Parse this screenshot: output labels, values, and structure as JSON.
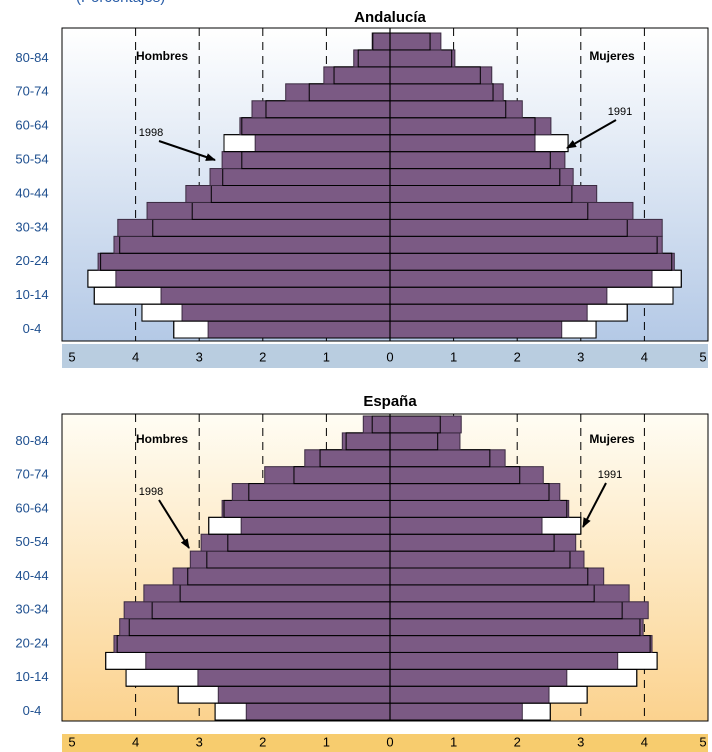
{
  "chart_data": [
    {
      "type": "pyramid",
      "title": "Andalucía",
      "subtitle": "(Porcentajes)",
      "left_label": "Hombres",
      "right_label": "Mujeres",
      "categories": [
        "0-4",
        null,
        "10-14",
        null,
        "20-24",
        null,
        "30-34",
        null,
        "40-44",
        null,
        "50-54",
        null,
        "60-64",
        null,
        "70-74",
        null,
        "80-84",
        null
      ],
      "series": [
        {
          "name": "1991",
          "color": "#ffffff",
          "left": [
            3.4,
            3.9,
            4.65,
            4.75,
            4.55,
            4.25,
            3.73,
            3.11,
            2.81,
            2.63,
            2.33,
            2.61,
            2.33,
            1.95,
            1.27,
            0.88,
            0.5,
            0.27
          ],
          "right": [
            3.24,
            3.73,
            4.45,
            4.58,
            4.43,
            4.2,
            3.73,
            3.11,
            2.86,
            2.67,
            2.52,
            2.8,
            2.28,
            1.82,
            1.62,
            1.42,
            0.97,
            0.63
          ]
        },
        {
          "name": "1998",
          "color": "#7b5a84",
          "left": [
            2.86,
            3.27,
            3.6,
            4.31,
            4.59,
            4.34,
            4.28,
            3.82,
            3.21,
            2.83,
            2.64,
            2.12,
            2.36,
            2.17,
            1.64,
            1.04,
            0.57,
            0.28
          ],
          "right": [
            2.7,
            3.1,
            3.41,
            4.12,
            4.47,
            4.28,
            4.28,
            3.82,
            3.25,
            2.88,
            2.75,
            2.28,
            2.53,
            2.08,
            1.78,
            1.6,
            1.02,
            0.8
          ]
        }
      ],
      "xlim": [
        -5,
        5
      ],
      "xticks": [
        {
          "value": -5,
          "label": "5"
        },
        {
          "value": -4,
          "label": "4"
        },
        {
          "value": -3,
          "label": "3"
        },
        {
          "value": -2,
          "label": "2"
        },
        {
          "value": -1,
          "label": "1"
        },
        0,
        1,
        2,
        3,
        4,
        5
      ],
      "grid": true,
      "background": [
        "#ffffff",
        "#b4c9e6"
      ],
      "axis_color": "#b9cde0"
    },
    {
      "type": "pyramid",
      "title": "España",
      "left_label": "Hombres",
      "right_label": "Mujeres",
      "categories": [
        "0-4",
        null,
        "10-14",
        null,
        "20-24",
        null,
        "30-34",
        null,
        "40-44",
        null,
        "50-54",
        null,
        "60-64",
        null,
        "70-74",
        null,
        "80-84",
        null
      ],
      "series": [
        {
          "name": "1991",
          "color": "#ffffff",
          "left": [
            2.75,
            3.33,
            4.15,
            4.47,
            4.29,
            4.1,
            3.74,
            3.3,
            3.18,
            2.88,
            2.55,
            2.85,
            2.61,
            2.22,
            1.51,
            1.1,
            0.69,
            0.28
          ],
          "right": [
            2.52,
            3.1,
            3.88,
            4.2,
            4.09,
            3.93,
            3.65,
            3.21,
            3.11,
            2.83,
            2.58,
            3.0,
            2.78,
            2.5,
            2.04,
            1.57,
            0.75,
            0.79
          ]
        },
        {
          "name": "1998",
          "color": "#7b5a84",
          "left": [
            2.26,
            2.7,
            3.02,
            3.84,
            4.34,
            4.25,
            4.18,
            3.87,
            3.41,
            3.14,
            2.97,
            2.34,
            2.64,
            2.48,
            1.97,
            1.34,
            0.75,
            0.42
          ],
          "right": [
            2.08,
            2.5,
            2.78,
            3.58,
            4.12,
            3.98,
            4.06,
            3.76,
            3.36,
            3.05,
            2.92,
            2.39,
            2.81,
            2.67,
            2.41,
            1.81,
            1.1,
            1.12
          ]
        }
      ],
      "xlim": [
        -5,
        5
      ],
      "xticks": [
        {
          "value": -5,
          "label": "5"
        },
        {
          "value": -4,
          "label": "4"
        },
        {
          "value": -3,
          "label": "3"
        },
        {
          "value": -2,
          "label": "2"
        },
        {
          "value": -1,
          "label": "1"
        },
        0,
        1,
        2,
        3,
        4,
        5
      ],
      "grid": true,
      "background": [
        "#fffdf4",
        "#fbd28e"
      ],
      "axis_color": "#f7cc6e"
    }
  ]
}
